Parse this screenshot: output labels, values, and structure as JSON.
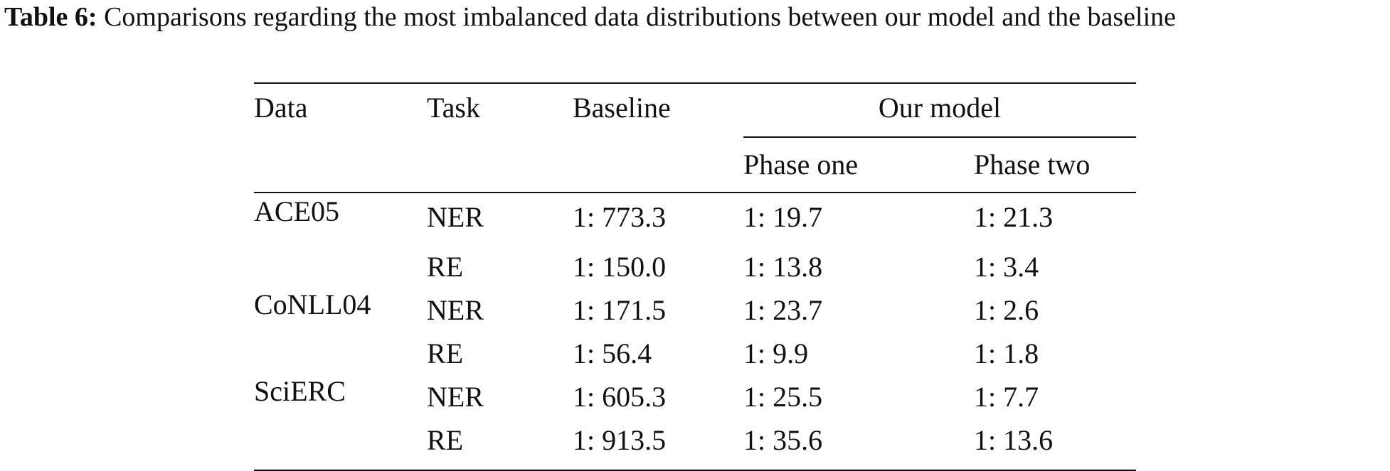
{
  "caption": {
    "label": "Table 6:",
    "text": "Comparisons regarding the most imbalanced data distributions between our model and the baseline"
  },
  "table": {
    "headers": {
      "data": "Data",
      "task": "Task",
      "baseline": "Baseline",
      "our_model": "Our model",
      "phase_one": "Phase one",
      "phase_two": "Phase two"
    },
    "rows": [
      {
        "data": "ACE05",
        "task": "NER",
        "baseline": "1: 773.3",
        "phase_one": "1: 19.7",
        "phase_two": "1: 21.3"
      },
      {
        "data": "",
        "task": "RE",
        "baseline": "1: 150.0",
        "phase_one": "1: 13.8",
        "phase_two": "1: 3.4"
      },
      {
        "data": "CoNLL04",
        "task": "NER",
        "baseline": "1: 171.5",
        "phase_one": "1: 23.7",
        "phase_two": "1: 2.6"
      },
      {
        "data": "",
        "task": "RE",
        "baseline": "1: 56.4",
        "phase_one": "1: 9.9",
        "phase_two": "1: 1.8"
      },
      {
        "data": "SciERC",
        "task": "NER",
        "baseline": "1: 605.3",
        "phase_one": "1: 25.5",
        "phase_two": "1: 7.7"
      },
      {
        "data": "",
        "task": "RE",
        "baseline": "1: 913.5",
        "phase_one": "1: 35.6",
        "phase_two": "1: 13.6"
      }
    ]
  }
}
